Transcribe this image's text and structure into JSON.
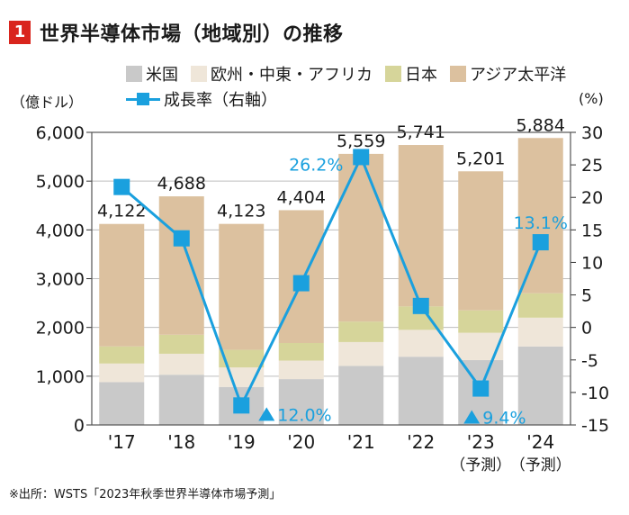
{
  "title": {
    "badge": "1",
    "text": "世界半導体市場（地域別）の推移"
  },
  "units": {
    "left": "（億ドル）",
    "right": "(%)"
  },
  "source": "※出所：WSTS「2023年秋季世界半導体市場予測」",
  "chart_data": {
    "type": "bar",
    "stacked": true,
    "categories": [
      "'17",
      "'18",
      "'19",
      "'20",
      "'21",
      "'22",
      "'23",
      "'24"
    ],
    "category_sublabels": [
      "",
      "",
      "",
      "",
      "",
      "",
      "（予測）",
      "（予測）"
    ],
    "series": [
      {
        "name": "米国",
        "color": "#c9c9c9",
        "values": [
          880,
          1030,
          780,
          940,
          1210,
          1400,
          1330,
          1610
        ]
      },
      {
        "name": "欧州・中東・アフリカ",
        "color": "#efe6d9",
        "values": [
          380,
          430,
          400,
          380,
          490,
          550,
          560,
          590
        ]
      },
      {
        "name": "日本",
        "color": "#d6d59a",
        "values": [
          350,
          390,
          360,
          360,
          420,
          480,
          460,
          500
        ]
      },
      {
        "name": "アジア太平洋",
        "color": "#dcc19f",
        "values": [
          2512,
          2838,
          2583,
          2724,
          3439,
          3311,
          2851,
          3184
        ]
      }
    ],
    "totals": [
      4122,
      4688,
      4123,
      4404,
      5559,
      5741,
      5201,
      5884
    ],
    "total_labels": [
      "4,122",
      "4,688",
      "4,123",
      "4,404",
      "5,559",
      "5,741",
      "5,201",
      "5,884"
    ],
    "line": {
      "name": "成長率（右軸）",
      "color": "#1aa0de",
      "values": [
        21.6,
        13.7,
        -12.0,
        6.8,
        26.2,
        3.3,
        -9.4,
        13.1
      ]
    },
    "line_annotations": [
      {
        "index": 4,
        "text": "26.2%",
        "arrow": ""
      },
      {
        "index": 2,
        "text": "12.0%",
        "arrow": "up"
      },
      {
        "index": 6,
        "text": "9.4%",
        "arrow": "up"
      },
      {
        "index": 7,
        "text": "13.1%",
        "arrow": ""
      }
    ],
    "y_left": {
      "min": 0,
      "max": 6000,
      "step": 1000,
      "tick_labels": [
        "0",
        "1,000",
        "2,000",
        "3,000",
        "4,000",
        "5,000",
        "6,000"
      ]
    },
    "y_right": {
      "min": -15,
      "max": 30,
      "step": 5,
      "tick_labels": [
        "-15",
        "-10",
        "-5",
        "0",
        "5",
        "10",
        "15",
        "20",
        "25",
        "30"
      ]
    },
    "grid": true,
    "legend_position": "top"
  }
}
